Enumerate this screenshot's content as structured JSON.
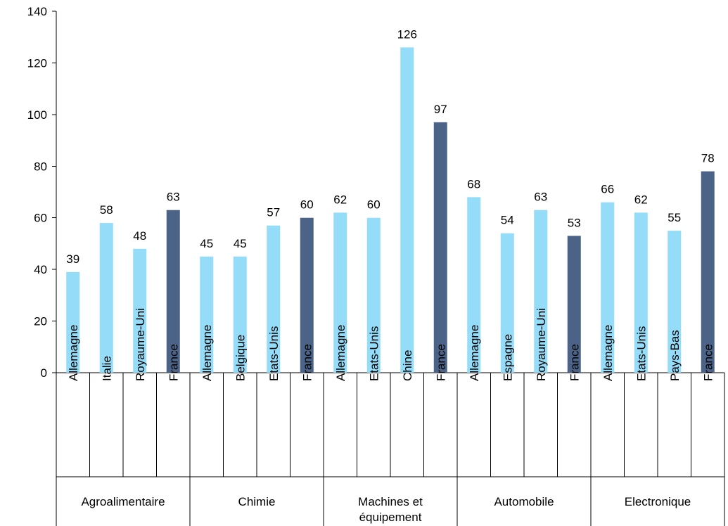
{
  "chart_data": {
    "type": "bar",
    "ylim": [
      0,
      140
    ],
    "yticks": [
      0,
      20,
      40,
      60,
      80,
      100,
      120,
      140
    ],
    "grid": false,
    "groups": [
      {
        "label": "Agroalimentaire",
        "bars": [
          {
            "country": "Allemagne",
            "value": 39
          },
          {
            "country": "Italie",
            "value": 58
          },
          {
            "country": "Royaume-Uni",
            "value": 48
          },
          {
            "country": "France",
            "value": 63
          }
        ]
      },
      {
        "label": "Chimie",
        "bars": [
          {
            "country": "Allemagne",
            "value": 45
          },
          {
            "country": "Belgique",
            "value": 45
          },
          {
            "country": "Etats-Unis",
            "value": 57
          },
          {
            "country": "France",
            "value": 60
          }
        ]
      },
      {
        "label": "Machines et équipement",
        "bars": [
          {
            "country": "Allemagne",
            "value": 62
          },
          {
            "country": "Etats-Unis",
            "value": 60
          },
          {
            "country": "Chine",
            "value": 126
          },
          {
            "country": "France",
            "value": 97
          }
        ]
      },
      {
        "label": "Automobile",
        "bars": [
          {
            "country": "Allemagne",
            "value": 68
          },
          {
            "country": "Espagne",
            "value": 54
          },
          {
            "country": "Royaume-Uni",
            "value": 63
          },
          {
            "country": "France",
            "value": 53
          }
        ]
      },
      {
        "label": "Electronique",
        "bars": [
          {
            "country": "Allemagne",
            "value": 66
          },
          {
            "country": "Etats-Unis",
            "value": 62
          },
          {
            "country": "Pays-Bas",
            "value": 55
          },
          {
            "country": "France",
            "value": 78
          }
        ]
      }
    ],
    "colors": {
      "highlight": "#4a6387",
      "other": "#94dcf7",
      "axis": "#000000"
    },
    "highlight_country": "France"
  }
}
